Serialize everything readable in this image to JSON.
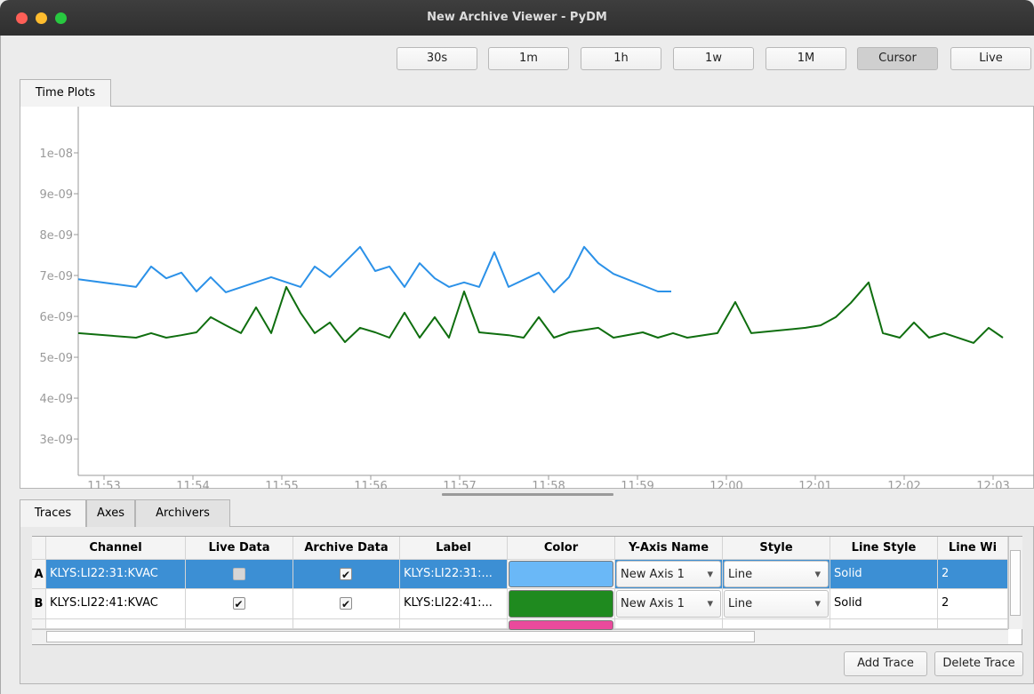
{
  "window": {
    "title": "New Archive Viewer - PyDM"
  },
  "toolbar": {
    "buttons": [
      "30s",
      "1m",
      "1h",
      "1w",
      "1M",
      "Cursor",
      "Live"
    ]
  },
  "tabs": [
    "Time Plots"
  ],
  "chart_data": {
    "type": "line",
    "xlim": [
      712.71,
      723.46
    ],
    "ylim": [
      2.11e-09,
      1.113e-08
    ],
    "xticks": [
      {
        "value": 713,
        "label": "11:53"
      },
      {
        "value": 714,
        "label": "11:54"
      },
      {
        "value": 715,
        "label": "11:55"
      },
      {
        "value": 716,
        "label": "11:56"
      },
      {
        "value": 717,
        "label": "11:57"
      },
      {
        "value": 718,
        "label": "11:58"
      },
      {
        "value": 719,
        "label": "11:59"
      },
      {
        "value": 720,
        "label": "12:00"
      },
      {
        "value": 721,
        "label": "12:01"
      },
      {
        "value": 722,
        "label": "12:02"
      },
      {
        "value": 723,
        "label": "12:03"
      }
    ],
    "yticks": [
      {
        "value": 1e-08,
        "label": "1e-08"
      },
      {
        "value": 9e-09,
        "label": "9e-09"
      },
      {
        "value": 8e-09,
        "label": "8e-09"
      },
      {
        "value": 7e-09,
        "label": "7e-09"
      },
      {
        "value": 6e-09,
        "label": "6e-09"
      },
      {
        "value": 5e-09,
        "label": "5e-09"
      },
      {
        "value": 4e-09,
        "label": "4e-09"
      },
      {
        "value": 3e-09,
        "label": "3e-09"
      }
    ],
    "series": [
      {
        "color": "#2b91e8",
        "x": [
          712.71,
          713.36,
          713.53,
          713.7,
          713.87,
          714.04,
          714.2,
          714.37,
          714.88,
          715.21,
          715.37,
          715.54,
          715.88,
          716.05,
          716.21,
          716.38,
          716.55,
          716.72,
          716.88,
          717.05,
          717.22,
          717.39,
          717.55,
          717.89,
          718.06,
          718.23,
          718.4,
          718.56,
          718.73,
          719.23,
          719.38
        ],
        "values": [
          6.91e-09,
          6.72e-09,
          7.22e-09,
          6.93e-09,
          7.07e-09,
          6.61e-09,
          6.96e-09,
          6.59e-09,
          6.96e-09,
          6.72e-09,
          7.22e-09,
          6.96e-09,
          7.7e-09,
          7.11e-09,
          7.22e-09,
          6.72e-09,
          7.3e-09,
          6.93e-09,
          6.72e-09,
          6.83e-09,
          6.72e-09,
          7.57e-09,
          6.72e-09,
          7.07e-09,
          6.59e-09,
          6.96e-09,
          7.7e-09,
          7.3e-09,
          7.04e-09,
          6.61e-09,
          6.61e-09
        ]
      },
      {
        "color": "#0f6e0f",
        "x": [
          712.71,
          713.36,
          713.53,
          713.7,
          713.87,
          714.04,
          714.2,
          714.37,
          714.54,
          714.71,
          714.88,
          715.05,
          715.21,
          715.37,
          715.54,
          715.71,
          715.88,
          716.05,
          716.21,
          716.38,
          716.55,
          716.72,
          716.88,
          717.05,
          717.22,
          717.55,
          717.72,
          717.89,
          718.06,
          718.23,
          718.56,
          718.73,
          719.06,
          719.23,
          719.4,
          719.56,
          719.9,
          720.1,
          720.28,
          720.89,
          721.06,
          721.23,
          721.4,
          721.6,
          721.76,
          721.95,
          722.11,
          722.28,
          722.45,
          722.78,
          722.95,
          723.11
        ],
        "values": [
          5.59e-09,
          5.48e-09,
          5.59e-09,
          5.48e-09,
          5.54e-09,
          5.61e-09,
          5.98e-09,
          5.78e-09,
          5.59e-09,
          6.22e-09,
          5.59e-09,
          6.72e-09,
          6.09e-09,
          5.59e-09,
          5.85e-09,
          5.37e-09,
          5.72e-09,
          5.61e-09,
          5.48e-09,
          6.09e-09,
          5.48e-09,
          5.98e-09,
          5.48e-09,
          6.61e-09,
          5.61e-09,
          5.54e-09,
          5.48e-09,
          5.98e-09,
          5.48e-09,
          5.61e-09,
          5.72e-09,
          5.48e-09,
          5.61e-09,
          5.48e-09,
          5.59e-09,
          5.48e-09,
          5.59e-09,
          6.35e-09,
          5.59e-09,
          5.72e-09,
          5.78e-09,
          5.98e-09,
          6.33e-09,
          6.83e-09,
          5.59e-09,
          5.48e-09,
          5.85e-09,
          5.48e-09,
          5.59e-09,
          5.35e-09,
          5.72e-09,
          5.48e-09
        ]
      }
    ]
  },
  "bottom_tabs": [
    "Traces",
    "Axes",
    "Archivers"
  ],
  "table": {
    "columns": [
      "Channel",
      "Live Data",
      "Archive Data",
      "Label",
      "Color",
      "Y-Axis Name",
      "Style",
      "Line Style",
      "Line Wi"
    ],
    "rows": [
      [
        "A",
        "KLYS:LI22:31:KVAC",
        false,
        true,
        "KLYS:LI22:31:...",
        "#6ab8f7",
        "New Axis 1",
        "Line",
        "Solid",
        2
      ],
      [
        "B",
        "KLYS:LI22:41:KVAC",
        true,
        true,
        "KLYS:LI22:41:...",
        "#1f8a1f",
        "New Axis 1",
        "Line",
        "Solid",
        2
      ],
      [
        null,
        null,
        null,
        null,
        null,
        "#ea4a9c",
        null,
        null,
        null,
        null
      ]
    ]
  },
  "buttons": [
    "Add Trace",
    "Delete Trace"
  ]
}
